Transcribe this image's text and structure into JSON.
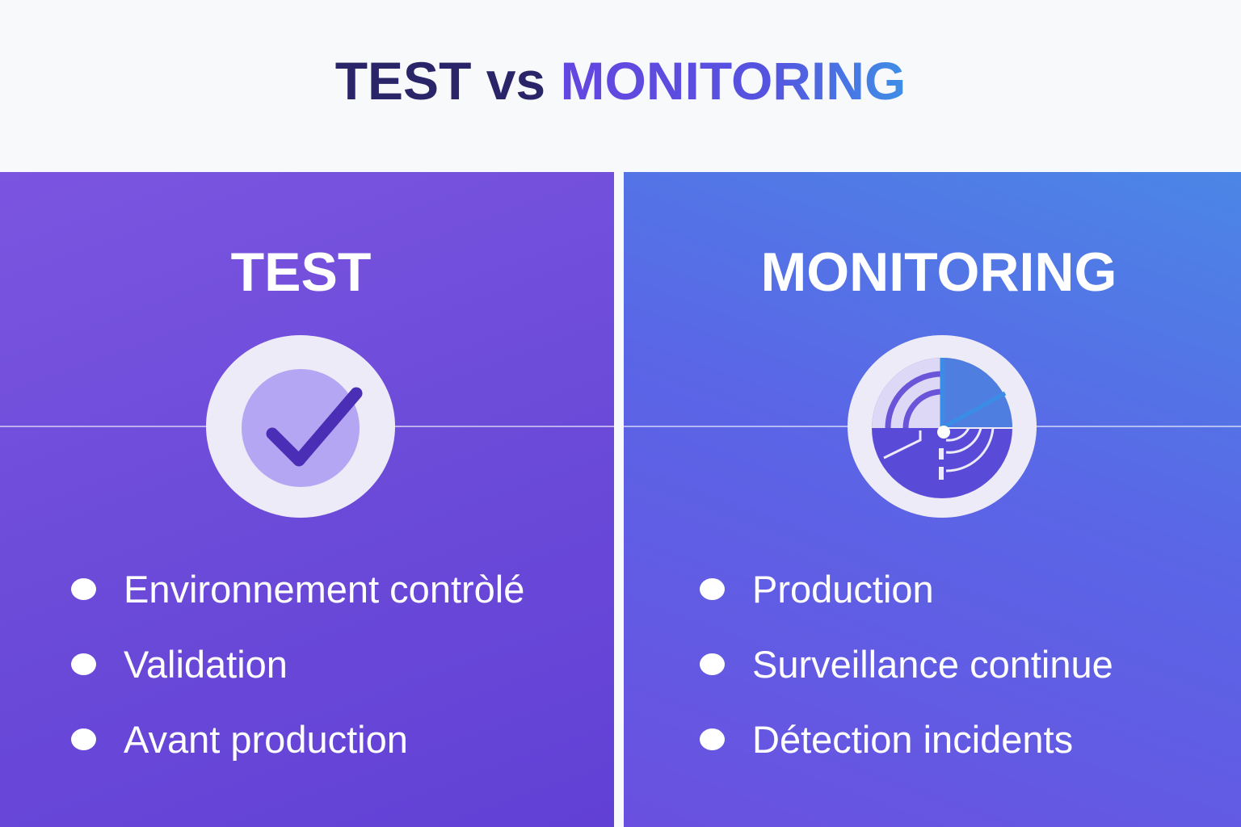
{
  "title": {
    "part1": "TEST vs",
    "part2": "MONITORING"
  },
  "test": {
    "heading": "TEST",
    "icon": "checkmark-icon",
    "items": [
      "Environnement contròlé",
      "Validation",
      "Avant production"
    ]
  },
  "monitoring": {
    "heading": "MONITORING",
    "icon": "radar-icon",
    "items": [
      "Production",
      "Surveillance continue",
      "Détection incidents"
    ]
  },
  "colors": {
    "test_panel": "#6c4bd9",
    "monitoring_panel": "#5a66e6",
    "title_dark": "#2a2468"
  }
}
